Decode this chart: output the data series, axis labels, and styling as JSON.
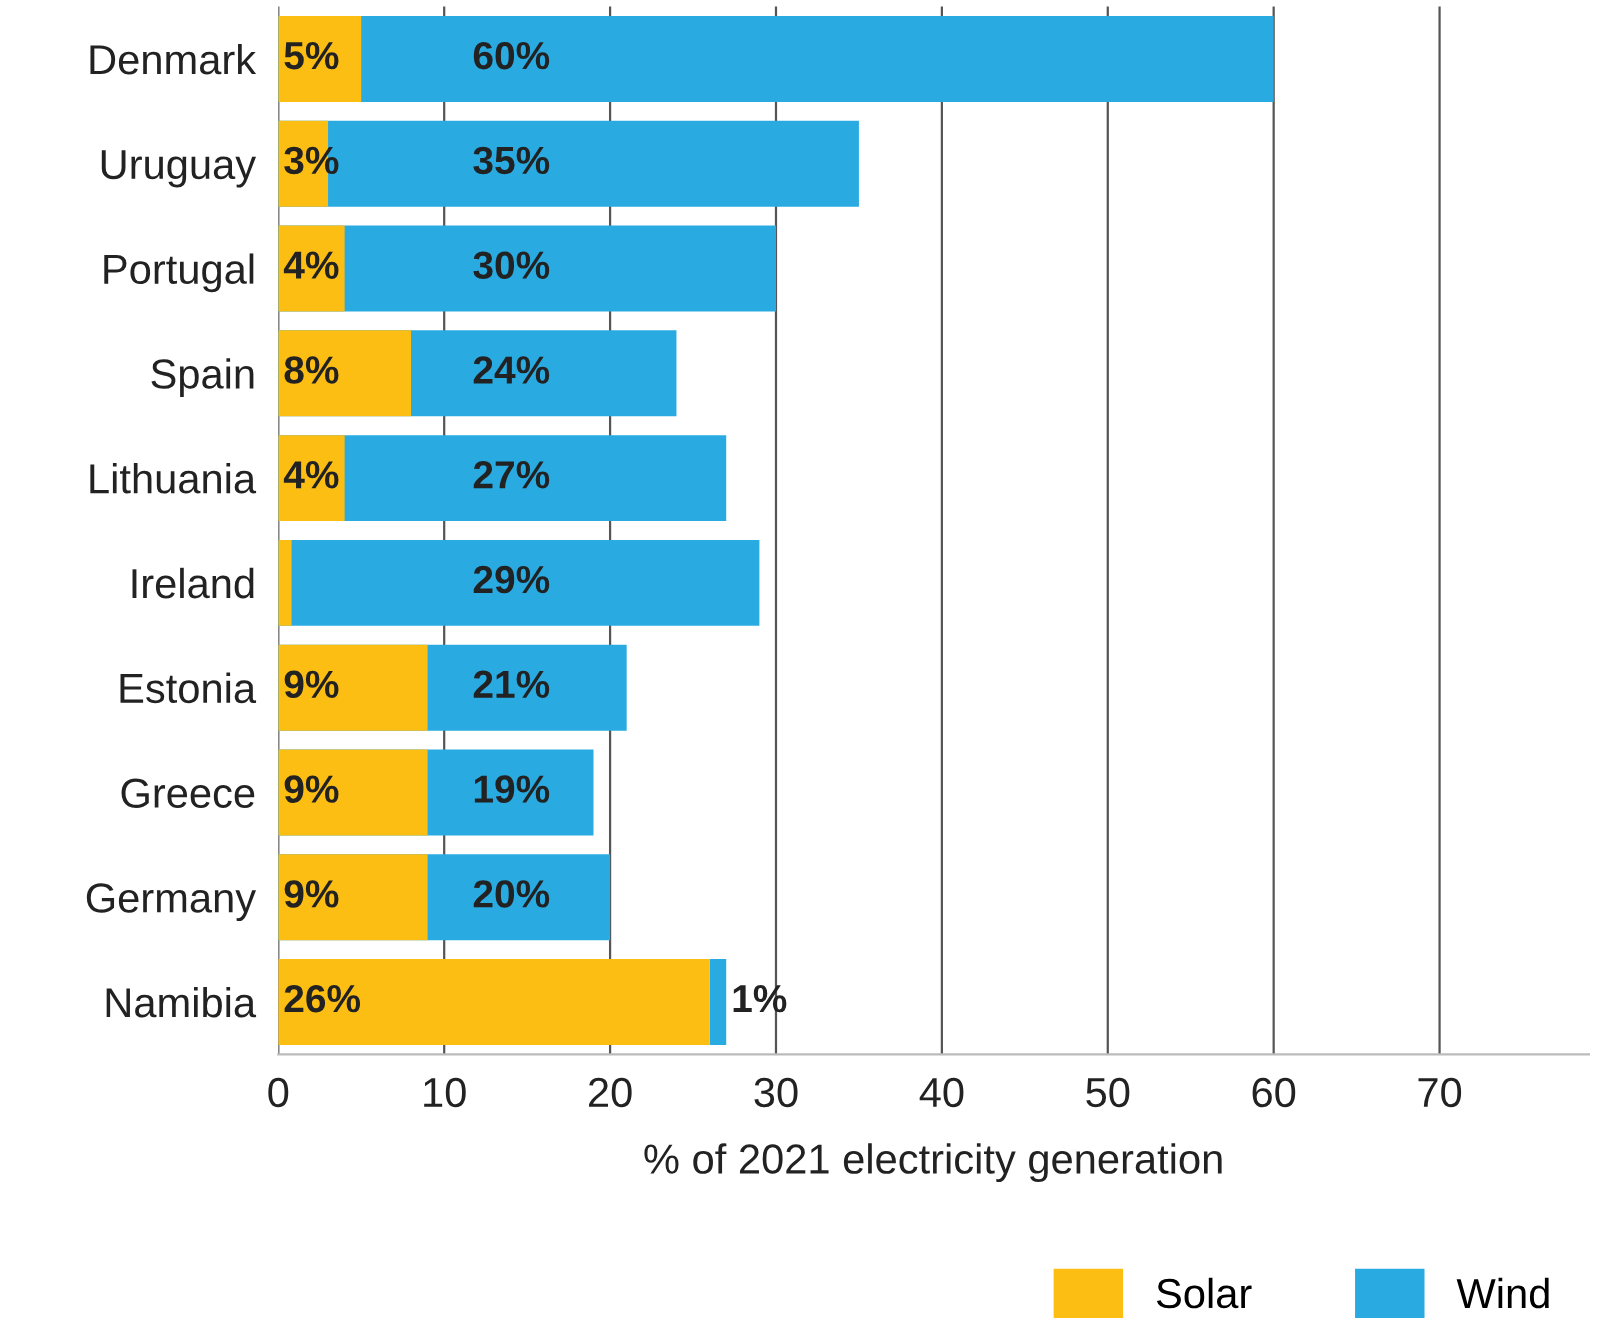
{
  "chart_data": {
    "type": "bar",
    "orientation": "horizontal",
    "stacked": false,
    "xlabel": "% of 2021 electricity generation",
    "categories": [
      "Denmark",
      "Uruguay",
      "Portugal",
      "Spain",
      "Lithuania",
      "Ireland",
      "Estonia",
      "Greece",
      "Germany",
      "Namibia"
    ],
    "series": [
      {
        "name": "Wind",
        "color": "#29abe2",
        "values": [
          60,
          35,
          30,
          24,
          27,
          29,
          21,
          19,
          20,
          1
        ],
        "base": [
          0,
          0,
          0,
          0,
          0,
          0,
          0,
          0,
          0,
          26
        ],
        "value_labels": [
          "60%",
          "35%",
          "30%",
          "24%",
          "27%",
          "29%",
          "21%",
          "19%",
          "20%",
          "1%"
        ]
      },
      {
        "name": "Solar",
        "color": "#fdbe14",
        "values": [
          5,
          3,
          4,
          8,
          4,
          0.8,
          9,
          9,
          9,
          26
        ],
        "value_labels": [
          "5%",
          "3%",
          "4%",
          "8%",
          "4%",
          null,
          "9%",
          "9%",
          "9%",
          "26%"
        ]
      }
    ],
    "xlim": [
      0,
      79
    ],
    "xticks": [
      0,
      10,
      20,
      30,
      40,
      50,
      60,
      70
    ],
    "grid": "x",
    "legend": "bottom right"
  }
}
